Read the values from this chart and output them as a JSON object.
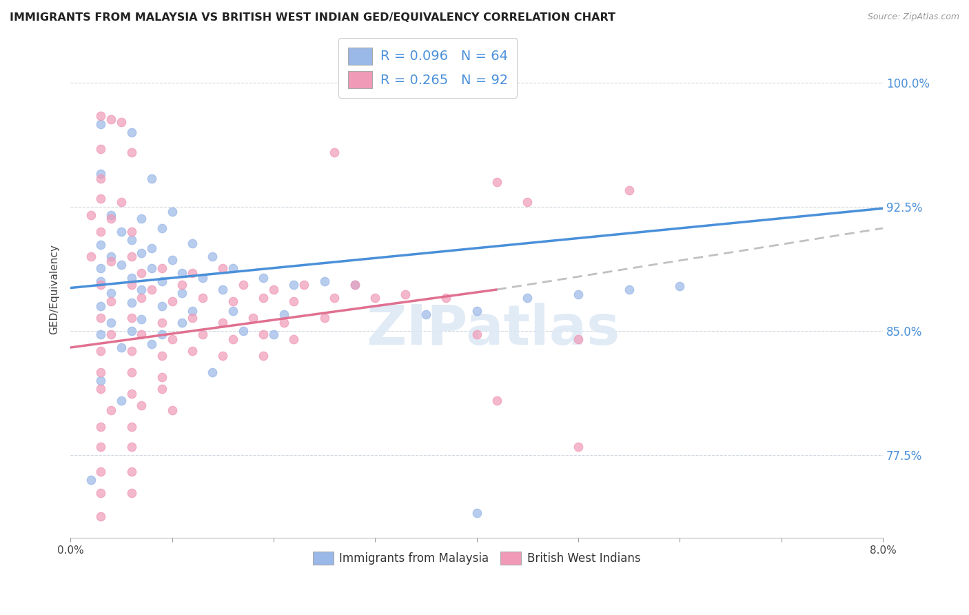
{
  "title": "IMMIGRANTS FROM MALAYSIA VS BRITISH WEST INDIAN GED/EQUIVALENCY CORRELATION CHART",
  "source": "Source: ZipAtlas.com",
  "ylabel": "GED/Equivalency",
  "ytick_labels": [
    "77.5%",
    "85.0%",
    "92.5%",
    "100.0%"
  ],
  "ytick_values": [
    0.775,
    0.85,
    0.925,
    1.0
  ],
  "xlim": [
    0.0,
    0.08
  ],
  "ylim": [
    0.725,
    1.025
  ],
  "legend_entries": [
    {
      "label": "R = 0.096   N = 64",
      "color": "#a8c4e8"
    },
    {
      "label": "R = 0.265   N = 92",
      "color": "#f4b8c8"
    }
  ],
  "legend_label_bottom": [
    "Immigrants from Malaysia",
    "British West Indians"
  ],
  "line_blue_color": "#4a90d9",
  "line_pink_color": "#e07090",
  "line_gray_color": "#c0c0c0",
  "axis_tick_color": "#4a90d9",
  "watermark": "ZIPatlas",
  "blue_scatter_color": "#9ab8e8",
  "pink_scatter_color": "#f09ab8",
  "blue_line": {
    "x0": 0.0,
    "y0": 0.876,
    "x1": 0.08,
    "y1": 0.924
  },
  "pink_line_solid": {
    "x0": 0.0,
    "y0": 0.84,
    "x1": 0.042,
    "y1": 0.875
  },
  "pink_line_dash": {
    "x0": 0.042,
    "y0": 0.875,
    "x1": 0.08,
    "y1": 0.912
  },
  "blue_points": [
    [
      0.003,
      0.975
    ],
    [
      0.006,
      0.97
    ],
    [
      0.003,
      0.945
    ],
    [
      0.008,
      0.942
    ],
    [
      0.004,
      0.92
    ],
    [
      0.007,
      0.918
    ],
    [
      0.01,
      0.922
    ],
    [
      0.005,
      0.91
    ],
    [
      0.009,
      0.912
    ],
    [
      0.003,
      0.902
    ],
    [
      0.006,
      0.905
    ],
    [
      0.008,
      0.9
    ],
    [
      0.012,
      0.903
    ],
    [
      0.004,
      0.895
    ],
    [
      0.007,
      0.897
    ],
    [
      0.01,
      0.893
    ],
    [
      0.014,
      0.895
    ],
    [
      0.003,
      0.888
    ],
    [
      0.005,
      0.89
    ],
    [
      0.008,
      0.888
    ],
    [
      0.011,
      0.885
    ],
    [
      0.016,
      0.888
    ],
    [
      0.003,
      0.88
    ],
    [
      0.006,
      0.882
    ],
    [
      0.009,
      0.88
    ],
    [
      0.013,
      0.882
    ],
    [
      0.019,
      0.882
    ],
    [
      0.004,
      0.873
    ],
    [
      0.007,
      0.875
    ],
    [
      0.011,
      0.873
    ],
    [
      0.015,
      0.875
    ],
    [
      0.022,
      0.878
    ],
    [
      0.025,
      0.88
    ],
    [
      0.028,
      0.878
    ],
    [
      0.003,
      0.865
    ],
    [
      0.006,
      0.867
    ],
    [
      0.009,
      0.865
    ],
    [
      0.004,
      0.855
    ],
    [
      0.007,
      0.857
    ],
    [
      0.011,
      0.855
    ],
    [
      0.003,
      0.848
    ],
    [
      0.006,
      0.85
    ],
    [
      0.009,
      0.848
    ],
    [
      0.012,
      0.862
    ],
    [
      0.016,
      0.862
    ],
    [
      0.021,
      0.86
    ],
    [
      0.005,
      0.84
    ],
    [
      0.008,
      0.842
    ],
    [
      0.017,
      0.85
    ],
    [
      0.02,
      0.848
    ],
    [
      0.035,
      0.86
    ],
    [
      0.04,
      0.862
    ],
    [
      0.045,
      0.87
    ],
    [
      0.05,
      0.872
    ],
    [
      0.055,
      0.875
    ],
    [
      0.06,
      0.877
    ],
    [
      0.003,
      0.82
    ],
    [
      0.014,
      0.825
    ],
    [
      0.005,
      0.808
    ],
    [
      0.002,
      0.76
    ],
    [
      0.04,
      0.74
    ]
  ],
  "pink_points": [
    [
      0.003,
      0.98
    ],
    [
      0.004,
      0.978
    ],
    [
      0.005,
      0.976
    ],
    [
      0.003,
      0.96
    ],
    [
      0.006,
      0.958
    ],
    [
      0.003,
      0.942
    ],
    [
      0.003,
      0.93
    ],
    [
      0.005,
      0.928
    ],
    [
      0.002,
      0.92
    ],
    [
      0.004,
      0.918
    ],
    [
      0.003,
      0.91
    ],
    [
      0.006,
      0.91
    ],
    [
      0.002,
      0.895
    ],
    [
      0.004,
      0.892
    ],
    [
      0.006,
      0.895
    ],
    [
      0.007,
      0.885
    ],
    [
      0.009,
      0.888
    ],
    [
      0.012,
      0.885
    ],
    [
      0.015,
      0.888
    ],
    [
      0.003,
      0.878
    ],
    [
      0.006,
      0.878
    ],
    [
      0.008,
      0.875
    ],
    [
      0.011,
      0.878
    ],
    [
      0.017,
      0.878
    ],
    [
      0.02,
      0.875
    ],
    [
      0.023,
      0.878
    ],
    [
      0.028,
      0.878
    ],
    [
      0.004,
      0.868
    ],
    [
      0.007,
      0.87
    ],
    [
      0.01,
      0.868
    ],
    [
      0.013,
      0.87
    ],
    [
      0.016,
      0.868
    ],
    [
      0.019,
      0.87
    ],
    [
      0.022,
      0.868
    ],
    [
      0.026,
      0.87
    ],
    [
      0.03,
      0.87
    ],
    [
      0.033,
      0.872
    ],
    [
      0.037,
      0.87
    ],
    [
      0.003,
      0.858
    ],
    [
      0.006,
      0.858
    ],
    [
      0.009,
      0.855
    ],
    [
      0.012,
      0.858
    ],
    [
      0.015,
      0.855
    ],
    [
      0.018,
      0.858
    ],
    [
      0.021,
      0.855
    ],
    [
      0.025,
      0.858
    ],
    [
      0.004,
      0.848
    ],
    [
      0.007,
      0.848
    ],
    [
      0.01,
      0.845
    ],
    [
      0.013,
      0.848
    ],
    [
      0.016,
      0.845
    ],
    [
      0.019,
      0.848
    ],
    [
      0.022,
      0.845
    ],
    [
      0.003,
      0.838
    ],
    [
      0.006,
      0.838
    ],
    [
      0.009,
      0.835
    ],
    [
      0.012,
      0.838
    ],
    [
      0.015,
      0.835
    ],
    [
      0.019,
      0.835
    ],
    [
      0.003,
      0.825
    ],
    [
      0.006,
      0.825
    ],
    [
      0.009,
      0.822
    ],
    [
      0.003,
      0.815
    ],
    [
      0.006,
      0.812
    ],
    [
      0.009,
      0.815
    ],
    [
      0.004,
      0.802
    ],
    [
      0.007,
      0.805
    ],
    [
      0.01,
      0.802
    ],
    [
      0.003,
      0.792
    ],
    [
      0.006,
      0.792
    ],
    [
      0.003,
      0.78
    ],
    [
      0.006,
      0.78
    ],
    [
      0.003,
      0.765
    ],
    [
      0.006,
      0.765
    ],
    [
      0.003,
      0.752
    ],
    [
      0.006,
      0.752
    ],
    [
      0.003,
      0.738
    ],
    [
      0.026,
      0.958
    ],
    [
      0.042,
      0.94
    ],
    [
      0.045,
      0.928
    ],
    [
      0.055,
      0.935
    ],
    [
      0.04,
      0.848
    ],
    [
      0.05,
      0.845
    ],
    [
      0.042,
      0.808
    ],
    [
      0.05,
      0.78
    ]
  ]
}
